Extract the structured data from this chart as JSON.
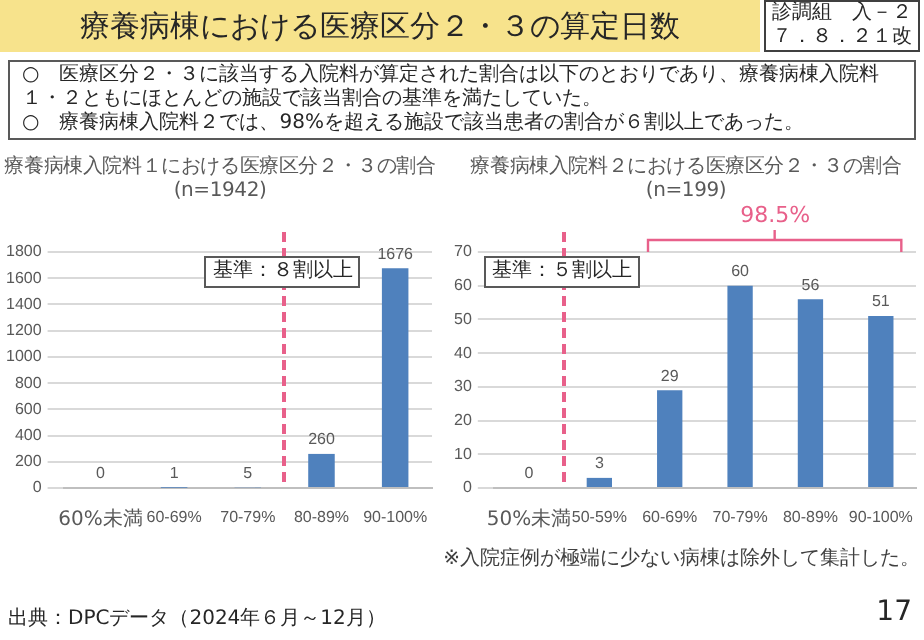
{
  "chart_data": [
    {
      "type": "other",
      "title": "療養病棟における医療区分２・３の算定日数",
      "annotations": [
        "診調組　入－２７．８．２１改",
        "○　医療区分２・３に該当する入院料が算定された割合は以下のとおりであり、療養病棟入院料１・２ともにほとんどの施設で該当割合の基準を満たしていた。",
        "○　療養病棟入院料２では、98%を超える施設で該当患者の割合が６割以上であった。",
        "出典：DPCデータ（2024年６月～12月）",
        "17"
      ]
    },
    {
      "type": "bar",
      "title": "療養病棟入院料１における医療区分２・３の割合",
      "subtitle": "(n=1942)",
      "categories": [
        "60%未満",
        "60-69%",
        "70-79%",
        "80-89%",
        "90-100%"
      ],
      "values": [
        0,
        1,
        5,
        260,
        1676
      ],
      "color": "#4f81bd",
      "ylim": [
        0,
        1800
      ],
      "yticks": [
        0,
        200,
        400,
        600,
        800,
        1000,
        1200,
        1400,
        1600,
        1800
      ],
      "grid": "y",
      "data_labels": true,
      "ref_lines": [
        {
          "axis": "x",
          "value": "80-89%",
          "label": "基準：８割以上",
          "color": "#e8608a",
          "line_style": "dashed"
        }
      ]
    },
    {
      "type": "bar",
      "title": "療養病棟入院料２における医療区分２・３の割合",
      "subtitle": "(n=199)",
      "categories": [
        "50%未満",
        "50-59%",
        "60-69%",
        "70-79%",
        "80-89%",
        "90-100%"
      ],
      "values": [
        0,
        3,
        29,
        60,
        56,
        51
      ],
      "color": "#4f81bd",
      "ylim": [
        0,
        70
      ],
      "yticks": [
        0,
        10,
        20,
        30,
        40,
        50,
        60,
        70
      ],
      "grid": "y",
      "data_labels": true,
      "ref_lines": [
        {
          "axis": "x",
          "value": "50-59%",
          "label": "基準：５割以上",
          "color": "#e8608a",
          "line_style": "dashed"
        }
      ],
      "annotations": [
        "98.5%",
        "※入院症例が極端に少ない病棟は除外して集計した。"
      ]
    }
  ]
}
